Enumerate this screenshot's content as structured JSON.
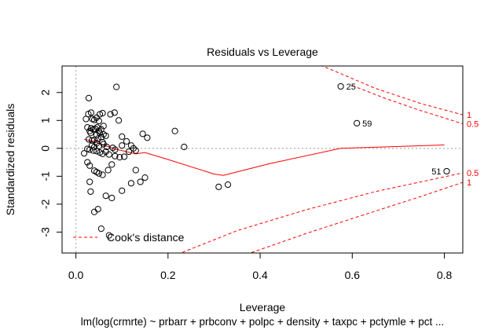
{
  "chart_data": {
    "type": "scatter",
    "title": "Residuals vs Leverage",
    "xlabel": "Leverage",
    "ylabel": "Standardized residuals",
    "subtitle": "lm(log(crmrte) ~ prbarr + prbconv + polpc + density + taxpc + pctymle + pct ...",
    "xlim": [
      -0.03,
      0.84
    ],
    "ylim": [
      -3.75,
      2.95
    ],
    "x_ticks": [
      0.0,
      0.2,
      0.4,
      0.6,
      0.8
    ],
    "x_tick_labels": [
      "0.0",
      "0.2",
      "0.4",
      "0.6",
      "0.8"
    ],
    "y_ticks": [
      -3,
      -2,
      -1,
      0,
      1,
      2
    ],
    "y_tick_labels": [
      "-3",
      "-2",
      "-1",
      "0",
      "1",
      "2"
    ],
    "points": [
      [
        0.022,
        1.05
      ],
      [
        0.027,
        1.23
      ],
      [
        0.028,
        1.8
      ],
      [
        0.033,
        1.28
      ],
      [
        0.036,
        1.05
      ],
      [
        0.04,
        1.02
      ],
      [
        0.045,
        1.1
      ],
      [
        0.052,
        1.22
      ],
      [
        0.05,
        0.98
      ],
      [
        0.058,
        1.26
      ],
      [
        0.075,
        1.22
      ],
      [
        0.084,
        1.28
      ],
      [
        0.093,
        1.0
      ],
      [
        0.088,
        2.2
      ],
      [
        0.025,
        0.75
      ],
      [
        0.03,
        0.62
      ],
      [
        0.033,
        0.72
      ],
      [
        0.038,
        0.68
      ],
      [
        0.042,
        0.7
      ],
      [
        0.046,
        0.75
      ],
      [
        0.05,
        0.62
      ],
      [
        0.055,
        0.68
      ],
      [
        0.06,
        0.8
      ],
      [
        0.032,
        0.55
      ],
      [
        0.045,
        0.48
      ],
      [
        0.052,
        0.55
      ],
      [
        0.06,
        0.5
      ],
      [
        0.065,
        0.45
      ],
      [
        0.055,
        0.4
      ],
      [
        0.028,
        0.32
      ],
      [
        0.035,
        0.28
      ],
      [
        0.04,
        0.3
      ],
      [
        0.048,
        0.35
      ],
      [
        0.058,
        0.22
      ],
      [
        0.035,
        0.12
      ],
      [
        0.045,
        0.18
      ],
      [
        0.04,
        0.05
      ],
      [
        0.05,
        0.08
      ],
      [
        0.06,
        0.15
      ],
      [
        0.067,
        0.05
      ],
      [
        0.08,
        0.02
      ],
      [
        0.025,
        -0.02
      ],
      [
        0.03,
        -0.05
      ],
      [
        0.038,
        -0.08
      ],
      [
        0.045,
        -0.1
      ],
      [
        0.052,
        -0.15
      ],
      [
        0.058,
        -0.2
      ],
      [
        0.065,
        -0.12
      ],
      [
        0.072,
        -0.22
      ],
      [
        0.085,
        -0.05
      ],
      [
        0.1,
        0.42
      ],
      [
        0.11,
        0.25
      ],
      [
        0.12,
        0.1
      ],
      [
        0.125,
        0.0
      ],
      [
        0.13,
        -0.08
      ],
      [
        0.115,
        -0.12
      ],
      [
        0.1,
        0.1
      ],
      [
        0.105,
        -0.3
      ],
      [
        0.145,
        0.52
      ],
      [
        0.155,
        0.38
      ],
      [
        0.215,
        0.62
      ],
      [
        0.235,
        0.05
      ],
      [
        0.018,
        -0.18
      ],
      [
        0.025,
        -0.5
      ],
      [
        0.03,
        -0.62
      ],
      [
        0.04,
        -0.8
      ],
      [
        0.05,
        -0.9
      ],
      [
        0.058,
        -0.95
      ],
      [
        0.045,
        -0.85
      ],
      [
        0.07,
        -0.78
      ],
      [
        0.078,
        -0.58
      ],
      [
        0.085,
        -0.28
      ],
      [
        0.095,
        -0.32
      ],
      [
        0.13,
        -0.78
      ],
      [
        0.15,
        -1.05
      ],
      [
        0.14,
        -1.2
      ],
      [
        0.12,
        -1.25
      ],
      [
        0.1,
        -1.52
      ],
      [
        0.03,
        -1.2
      ],
      [
        0.032,
        -1.55
      ],
      [
        0.04,
        -2.28
      ],
      [
        0.048,
        -2.18
      ],
      [
        0.055,
        -2.88
      ],
      [
        0.065,
        -1.7
      ],
      [
        0.078,
        -1.78
      ],
      [
        0.072,
        -3.12
      ],
      [
        0.31,
        -1.38
      ],
      [
        0.33,
        -1.3
      ],
      [
        0.575,
        2.22
      ],
      [
        0.61,
        0.9
      ],
      [
        0.805,
        -0.82
      ]
    ],
    "labeled_points": [
      {
        "label": "25",
        "x": 0.575,
        "y": 2.22
      },
      {
        "label": "59",
        "x": 0.61,
        "y": 0.9
      },
      {
        "label": "51",
        "x": 0.805,
        "y": -0.82
      }
    ],
    "smoother": [
      [
        0.018,
        0.32
      ],
      [
        0.04,
        0.25
      ],
      [
        0.06,
        0.12
      ],
      [
        0.085,
        -0.03
      ],
      [
        0.1,
        -0.08
      ],
      [
        0.13,
        -0.2
      ],
      [
        0.15,
        -0.15
      ],
      [
        0.2,
        -0.4
      ],
      [
        0.3,
        -0.92
      ],
      [
        0.32,
        -0.97
      ],
      [
        0.42,
        -0.55
      ],
      [
        0.575,
        0.0
      ],
      [
        0.8,
        0.12
      ]
    ],
    "cooks_contours": [
      {
        "label": "1",
        "side": "upper",
        "level": 1.0,
        "points": [
          [
            0.43,
            3.6
          ],
          [
            0.55,
            2.85
          ],
          [
            0.65,
            2.15
          ],
          [
            0.75,
            1.6
          ],
          [
            0.84,
            1.2
          ]
        ]
      },
      {
        "label": "0.5",
        "side": "upper",
        "level": 0.5,
        "points": [
          [
            0.6,
            2.25
          ],
          [
            0.67,
            1.8
          ],
          [
            0.74,
            1.4
          ],
          [
            0.84,
            0.88
          ]
        ]
      },
      {
        "label": "0.5",
        "side": "lower",
        "level": 0.5,
        "points": [
          [
            0.22,
            -3.8
          ],
          [
            0.35,
            -2.95
          ],
          [
            0.5,
            -2.2
          ],
          [
            0.65,
            -1.55
          ],
          [
            0.84,
            -0.88
          ]
        ]
      },
      {
        "label": "1",
        "side": "lower",
        "level": 1.0,
        "points": [
          [
            0.37,
            -3.8
          ],
          [
            0.5,
            -3.05
          ],
          [
            0.65,
            -2.25
          ],
          [
            0.75,
            -1.72
          ],
          [
            0.84,
            -1.22
          ]
        ]
      }
    ],
    "legend": {
      "label": "Cook's distance",
      "position": "bottom-left"
    },
    "grid": false,
    "colors": {
      "points": "#000000",
      "smoother": "#ff0000",
      "cooks": "#ff0000",
      "reference": "#bbbbbb"
    }
  }
}
